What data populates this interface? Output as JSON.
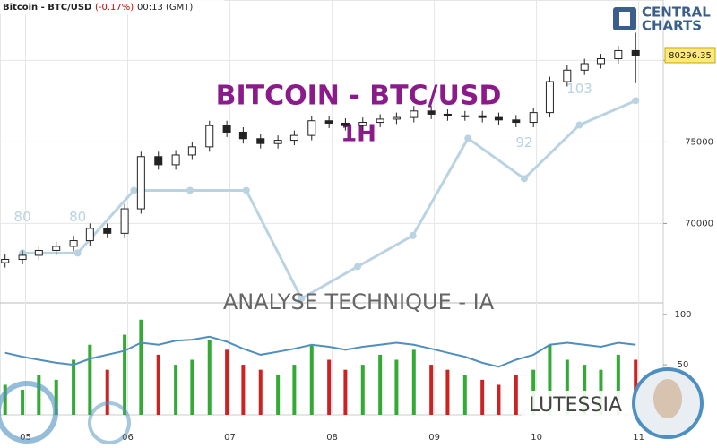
{
  "chart_data": [
    {
      "type": "candlestick",
      "title": "Bitcoin - BTC/USD",
      "change": "(-0.17%)",
      "time": "00:13 (GMT)",
      "watermark": "BITCOIN - BTC/USD",
      "timeframe": "1H",
      "x": [
        4.8,
        4.97,
        5.13,
        5.3,
        5.47,
        5.63,
        5.8,
        5.97,
        6.13,
        6.3,
        6.47,
        6.63,
        6.8,
        6.97,
        7.13,
        7.3,
        7.47,
        7.63,
        7.8,
        7.97,
        8.13,
        8.3,
        8.47,
        8.63,
        8.8,
        8.97,
        9.13,
        9.3,
        9.47,
        9.63,
        9.8,
        9.97,
        10.13,
        10.3,
        10.47,
        10.63,
        10.8,
        10.97
      ],
      "open": [
        67600,
        67800,
        68050,
        68350,
        68600,
        68950,
        69700,
        69400,
        70900,
        74100,
        73600,
        74200,
        74700,
        76000,
        75600,
        75200,
        74900,
        75100,
        75400,
        76300,
        76150,
        76000,
        76200,
        76400,
        76500,
        76900,
        76700,
        76600,
        76600,
        76500,
        76350,
        76200,
        76800,
        78700,
        79400,
        79800,
        80100,
        80600
      ],
      "high": [
        68100,
        68350,
        68650,
        68900,
        69250,
        70000,
        70000,
        71200,
        74400,
        74400,
        74500,
        75000,
        76300,
        76300,
        75900,
        75500,
        75400,
        75700,
        76600,
        76600,
        76450,
        76500,
        76700,
        76800,
        77200,
        77200,
        77000,
        76900,
        76900,
        76800,
        76650,
        77100,
        79000,
        79700,
        80100,
        80400,
        80900,
        81700
      ],
      "low": [
        67300,
        67500,
        67750,
        68050,
        68300,
        68650,
        69100,
        69100,
        70600,
        73300,
        73300,
        73900,
        74400,
        75300,
        74900,
        74600,
        74600,
        74800,
        75100,
        75850,
        75700,
        75700,
        75900,
        76100,
        76200,
        76400,
        76300,
        76300,
        76200,
        76050,
        75900,
        75900,
        76500,
        78400,
        79100,
        79500,
        79800,
        78600
      ],
      "close": [
        67800,
        68050,
        68350,
        68600,
        68950,
        69700,
        69400,
        70900,
        74100,
        73600,
        74200,
        74700,
        76000,
        75600,
        75200,
        74900,
        75100,
        75400,
        76300,
        76150,
        76000,
        76200,
        76400,
        76500,
        76900,
        76700,
        76600,
        76600,
        76500,
        76350,
        76200,
        76800,
        78700,
        79400,
        79800,
        80100,
        80600,
        80300
      ],
      "overlay": {
        "color": "#b9d3e3",
        "x": [
          4.97,
          5.51,
          6.06,
          6.61,
          7.16,
          7.7,
          8.25,
          8.79,
          9.33,
          9.88,
          10.42,
          10.97
        ],
        "values": [
          68190,
          68190,
          72030,
          72030,
          72030,
          65400,
          67360,
          69260,
          75220,
          72750,
          76040,
          77530
        ],
        "annotations": [
          {
            "text": "80",
            "index": 0
          },
          {
            "text": "80",
            "index": 1
          },
          {
            "text": "92",
            "index": 9
          },
          {
            "text": "103",
            "index": 10
          }
        ]
      },
      "last_price": 80296.35,
      "xlim": [
        4.75,
        11.24
      ],
      "ylim": [
        65300,
        83700
      ],
      "yticks": [
        70000,
        75000,
        80000
      ],
      "xticks": [
        {
          "value": 5,
          "label": "05"
        },
        {
          "value": 6,
          "label": "06"
        },
        {
          "value": 7,
          "label": "07"
        },
        {
          "value": 8,
          "label": "08"
        },
        {
          "value": 9,
          "label": "09"
        },
        {
          "value": 10,
          "label": "10"
        },
        {
          "value": 11,
          "label": "11"
        }
      ],
      "grid": true
    },
    {
      "type": "bar",
      "title": "ANALYSE TECHNIQUE - IA",
      "values": [
        30,
        25,
        40,
        35,
        55,
        70,
        45,
        80,
        95,
        60,
        50,
        55,
        75,
        65,
        50,
        45,
        40,
        50,
        70,
        55,
        45,
        50,
        60,
        55,
        65,
        50,
        45,
        40,
        35,
        30,
        40,
        45,
        70,
        55,
        50,
        45,
        60,
        55
      ],
      "up_color": "#33aa33",
      "down_color": "#cc2222",
      "line": {
        "color": "#4f8fc0",
        "values": [
          62,
          58,
          55,
          52,
          50,
          56,
          60,
          64,
          72,
          70,
          74,
          75,
          78,
          73,
          66,
          60,
          63,
          66,
          70,
          68,
          65,
          68,
          70,
          72,
          70,
          66,
          62,
          58,
          52,
          48,
          55,
          60,
          70,
          72,
          70,
          68,
          72,
          70
        ]
      },
      "ylim": [
        0,
        110
      ],
      "yticks": [
        50,
        100
      ]
    }
  ],
  "brand": [
    "CENTRAL",
    "CHARTS"
  ],
  "badge": "LUTESSIA"
}
